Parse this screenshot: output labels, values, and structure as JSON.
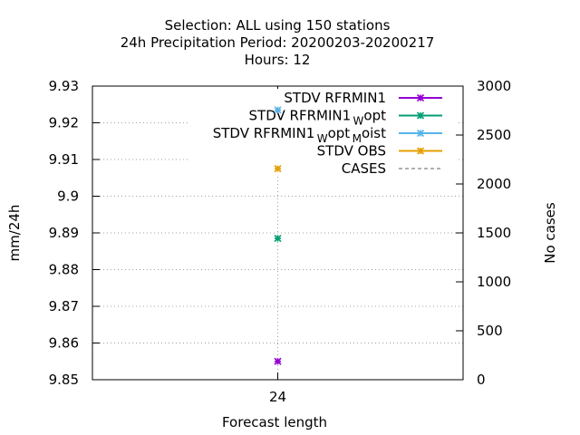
{
  "chart_data": {
    "type": "scatter",
    "title_lines": [
      "Selection: ALL using   150 stations",
      "24h Precipitation   Period: 20200203-20200217",
      "Hours:  12"
    ],
    "xlabel": "Forecast length",
    "ylabel": "mm/24h",
    "y2label": "No cases",
    "x_categories": [
      "24"
    ],
    "ylim": [
      9.85,
      9.93
    ],
    "y_ticks": [
      "9.85",
      "9.86",
      "9.87",
      "9.88",
      "9.89",
      "9.9",
      "9.91",
      "9.92",
      "9.93"
    ],
    "y2lim": [
      0,
      3000
    ],
    "y2_ticks": [
      "0",
      "500",
      "1000",
      "1500",
      "2000",
      "2500",
      "3000"
    ],
    "grid": true,
    "legend_position": "top-right",
    "series": [
      {
        "legend": {
          "main": "STDV RFRMIN1",
          "parts": []
        },
        "color": "#9400d3",
        "style": "line-points",
        "x": "24",
        "y": 9.855
      },
      {
        "legend": {
          "main": "STDV RFRMIN1",
          "parts": [
            {
              "t": "W",
              "sub": true
            },
            {
              "t": "opt",
              "sub": false
            }
          ]
        },
        "color": "#009e73",
        "style": "line-points",
        "x": "24",
        "y": 9.8885
      },
      {
        "legend": {
          "main": "STDV RFRMIN1",
          "parts": [
            {
              "t": "W",
              "sub": true
            },
            {
              "t": "opt",
              "sub": false
            },
            {
              "t": "M",
              "sub": true
            },
            {
              "t": "oist",
              "sub": false
            }
          ]
        },
        "color": "#56b4e9",
        "style": "line-points",
        "x": "24",
        "y": 9.9235
      },
      {
        "legend": {
          "main": "STDV OBS",
          "parts": []
        },
        "color": "#e69f00",
        "style": "line-points",
        "x": "24",
        "y": 9.9075
      },
      {
        "legend": {
          "main": "CASES",
          "parts": []
        },
        "color": "#808080",
        "style": "dashed",
        "axis": "y2"
      }
    ]
  }
}
